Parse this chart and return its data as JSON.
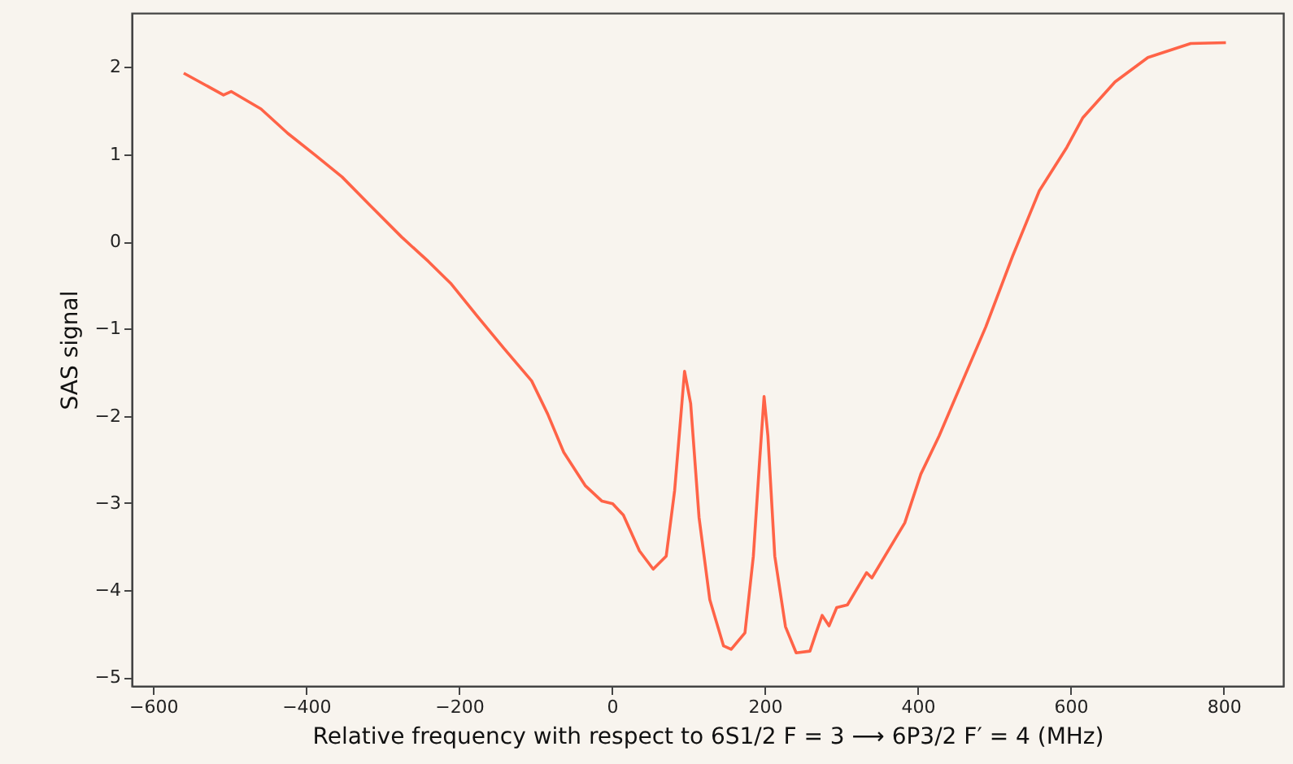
{
  "chart_data": {
    "type": "line",
    "xlabel": "Relative frequency with respect to 6S1/2 F = 3 ⟶ 6P3/2 F′ = 4 (MHz)",
    "ylabel": "SAS signal",
    "x": [
      -560,
      -508,
      -498,
      -459,
      -424,
      -388,
      -353,
      -317,
      -275,
      -240,
      -211,
      -176,
      -141,
      -105,
      -84,
      -63,
      -35,
      -13,
      1,
      15,
      36,
      54,
      71,
      82,
      95,
      103,
      114,
      128,
      146,
      156,
      174,
      185,
      193,
      199,
      204,
      213,
      227,
      241,
      259,
      267,
      275,
      284,
      294,
      308,
      333,
      340,
      383,
      404,
      428,
      446,
      489,
      524,
      559,
      595,
      616,
      658,
      701,
      757,
      803
    ],
    "series": [
      {
        "color": "#ff6347",
        "values": [
          1.93,
          1.68,
          1.72,
          1.52,
          1.24,
          0.99,
          0.74,
          0.42,
          0.05,
          -0.23,
          -0.48,
          -0.86,
          -1.23,
          -1.6,
          -1.98,
          -2.42,
          -2.8,
          -2.98,
          -3.01,
          -3.14,
          -3.55,
          -3.76,
          -3.61,
          -2.86,
          -1.49,
          -1.86,
          -3.17,
          -4.11,
          -4.64,
          -4.68,
          -4.49,
          -3.61,
          -2.54,
          -1.78,
          -2.23,
          -3.61,
          -4.42,
          -4.72,
          -4.7,
          -4.49,
          -4.29,
          -4.41,
          -4.2,
          -4.17,
          -3.8,
          -3.86,
          -3.23,
          -2.67,
          -2.23,
          -1.86,
          -0.98,
          -0.17,
          0.58,
          1.08,
          1.42,
          1.83,
          2.11,
          2.27,
          2.28
        ]
      }
    ],
    "xlim": [
      -628,
      878
    ],
    "ylim": [
      -5.1,
      2.62
    ],
    "xticks": [
      -600,
      -400,
      -200,
      0,
      200,
      400,
      600,
      800
    ],
    "yticks": [
      -5,
      -4,
      -3,
      -2,
      -1,
      0,
      1,
      2
    ],
    "grid": false,
    "line_style": "solid",
    "marker": "none"
  }
}
